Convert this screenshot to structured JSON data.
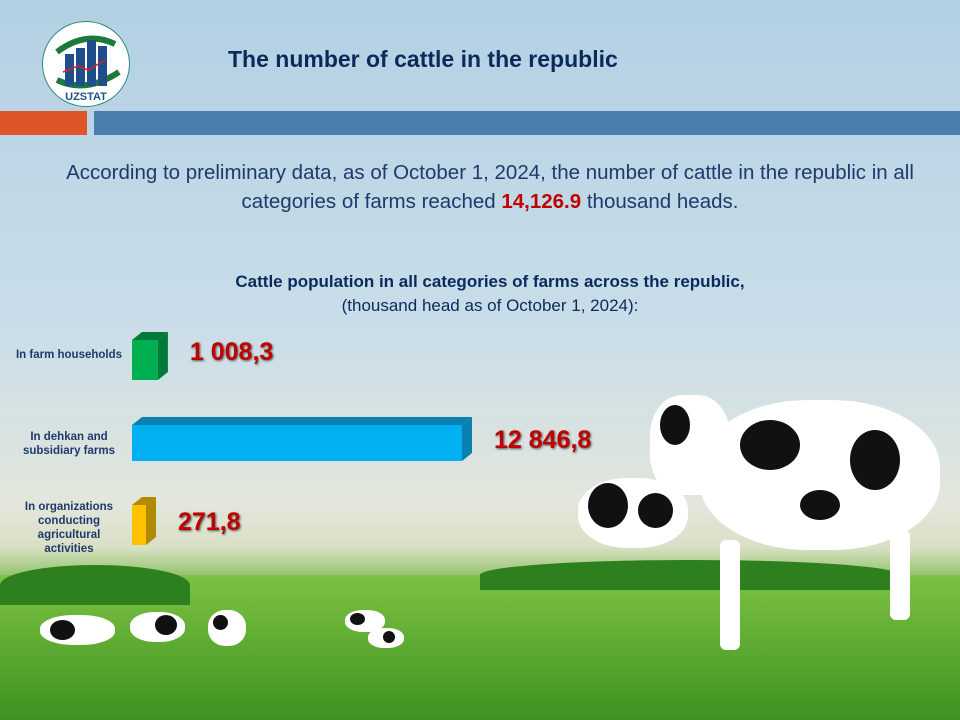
{
  "header": {
    "logo_text": "UZSTAT",
    "title": "The number of cattle in the republic"
  },
  "intro": {
    "before": "According to preliminary data, as of October 1, 2024, the number of cattle in the republic in all categories of farms reached ",
    "highlight": "14,126.9",
    "after": " thousand heads."
  },
  "chart_data": {
    "type": "bar",
    "orientation": "horizontal",
    "title": "Cattle population in all categories of farms across the republic,",
    "subtitle": "(thousand head as of October 1, 2024):",
    "categories": [
      "In farm households",
      "In dehkan and subsidiary farms",
      "In organizations conducting agricultural activities"
    ],
    "values": [
      1008.3,
      12846.8,
      271.8
    ],
    "value_labels": [
      "1 008,3",
      "12 846,8",
      "271,8"
    ],
    "colors": [
      "#00b050",
      "#00b0f0",
      "#ffc000"
    ],
    "side_colors": [
      "#007a3a",
      "#0b7fb0",
      "#b08a00"
    ],
    "grid": false
  }
}
